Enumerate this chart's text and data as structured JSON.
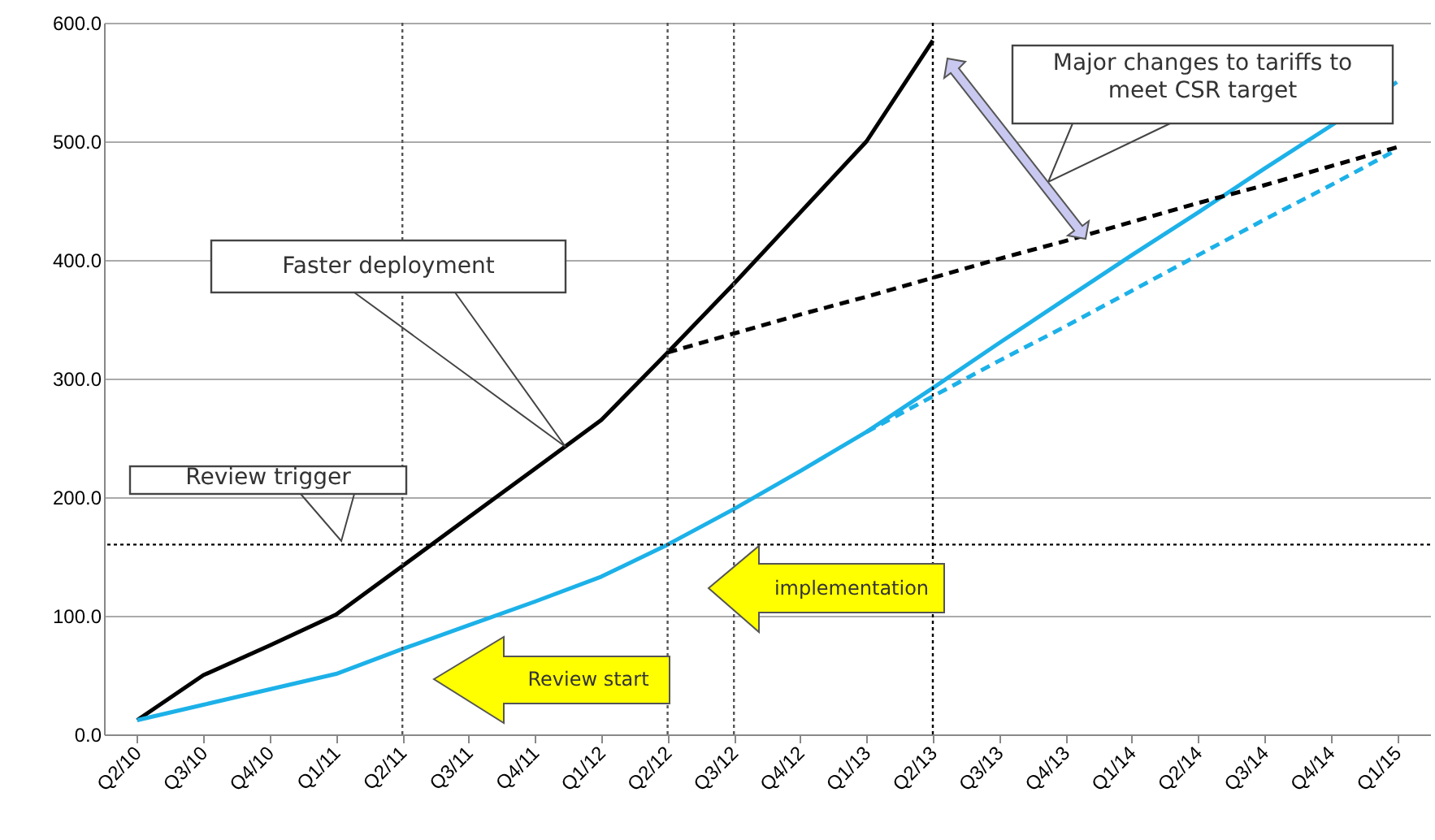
{
  "chart_data": {
    "type": "line",
    "categories": [
      "Q2/10",
      "Q3/10",
      "Q4/10",
      "Q1/11",
      "Q2/11",
      "Q3/11",
      "Q4/11",
      "Q1/12",
      "Q2/12",
      "Q3/12",
      "Q4/12",
      "Q1/13",
      "Q2/13",
      "Q3/13",
      "Q4/13",
      "Q1/14",
      "Q2/14",
      "Q3/14",
      "Q4/14",
      "Q1/15"
    ],
    "series": [
      {
        "color": "#000000",
        "line_style": "solid",
        "values": [
          12,
          50,
          75,
          101,
          142,
          183,
          224,
          265,
          322,
          380,
          440,
          500,
          585,
          null,
          null,
          null,
          null,
          null,
          null,
          null
        ]
      },
      {
        "color": "#1cb1e8",
        "line_style": "solid",
        "values": [
          12,
          25,
          38,
          51,
          72,
          92,
          112,
          133,
          160,
          190,
          222,
          255,
          292,
          330,
          367,
          404,
          440,
          477,
          513,
          550
        ]
      },
      {
        "color": "#000000",
        "line_style": "dashed",
        "values": [
          null,
          null,
          null,
          null,
          null,
          null,
          null,
          null,
          322,
          338,
          354,
          369,
          385,
          401,
          416,
          432,
          448,
          463,
          479,
          495
        ]
      },
      {
        "color": "#1cb1e8",
        "line_style": "dashed",
        "values": [
          null,
          null,
          null,
          null,
          null,
          null,
          null,
          null,
          null,
          null,
          null,
          255,
          285,
          315,
          344,
          374,
          404,
          434,
          463,
          493
        ]
      }
    ],
    "ylim": [
      0,
      600
    ],
    "yticks": [
      {
        "value": 0,
        "label": "0.0"
      },
      {
        "value": 100,
        "label": "100.0"
      },
      {
        "value": 200,
        "label": "200.0"
      },
      {
        "value": 300,
        "label": "300.0"
      },
      {
        "value": 400,
        "label": "400.0"
      },
      {
        "value": 500,
        "label": "500.0"
      },
      {
        "value": 600,
        "label": "600.0"
      }
    ],
    "grid": "y",
    "marker": "none",
    "ref_lines": [
      {
        "axis": "y",
        "value": 160,
        "color": "#000000",
        "line_style": "dotted"
      },
      {
        "axis": "x",
        "value": "Q2/11",
        "color": "#555555",
        "line_style": "dotted"
      },
      {
        "axis": "x",
        "value": "Q2/12",
        "color": "#555555",
        "line_style": "dotted"
      },
      {
        "axis": "x",
        "value": "Q3/12",
        "color": "#555555",
        "line_style": "dotted"
      },
      {
        "axis": "x",
        "value": "Q2/13",
        "color": "#000000",
        "line_style": "dotted"
      }
    ],
    "annotations": [
      "Faster deployment",
      "Review trigger",
      "Major changes to tariffs to meet CSR target",
      "Review start",
      "implementation"
    ]
  }
}
